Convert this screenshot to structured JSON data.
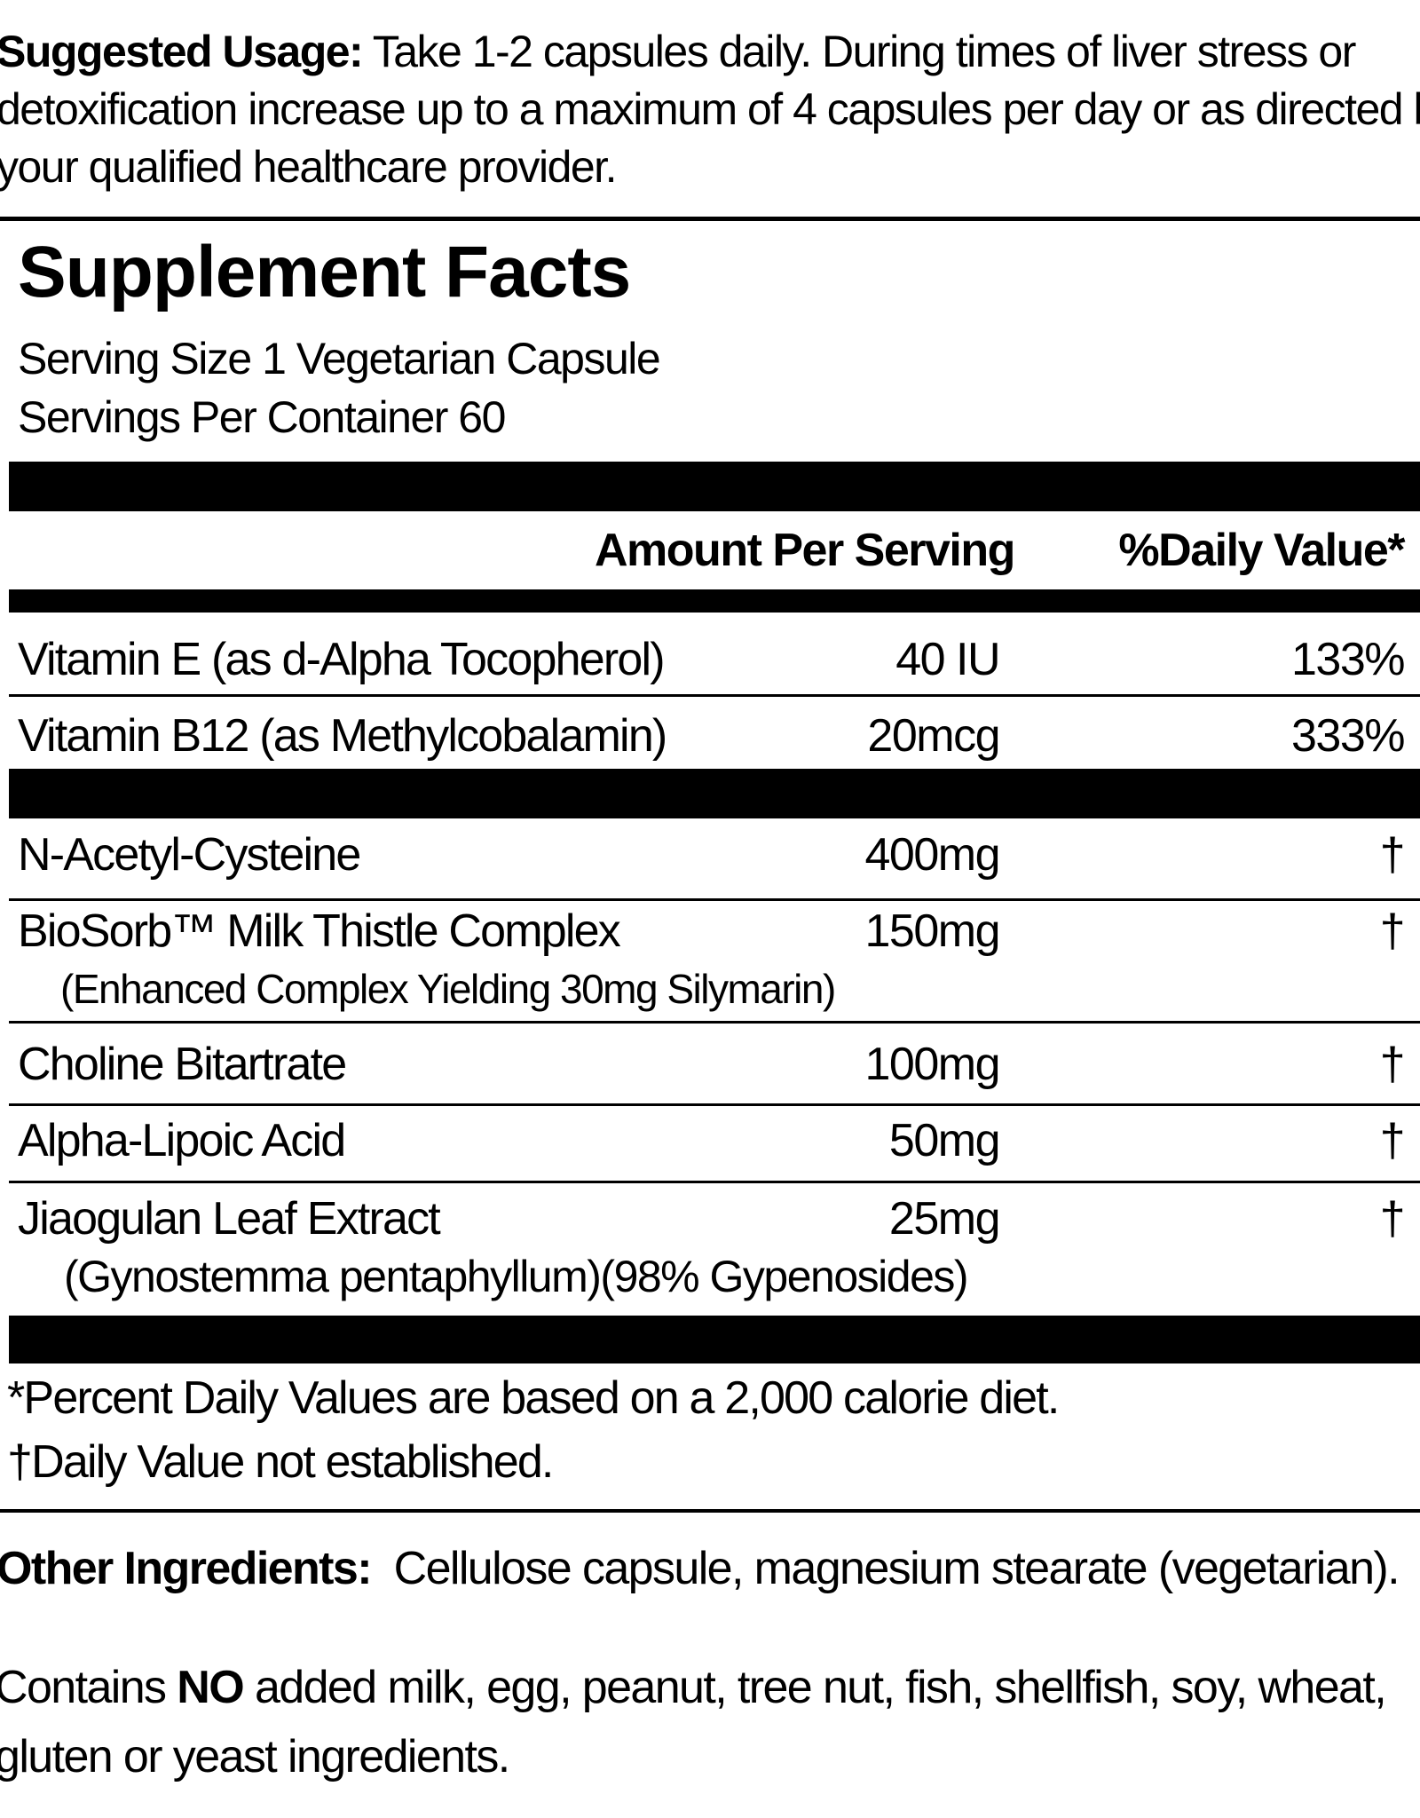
{
  "usage": {
    "label": "Suggested Usage:",
    "text": " Take 1-2 capsules daily. During times of liver stress or detoxification increase up to a maximum of 4 capsules per day or as directed by your qualified healthcare provider."
  },
  "facts": {
    "title": "Supplement Facts",
    "serving_size": "Serving Size 1 Vegetarian Capsule",
    "servings_per_container": "Servings Per Container 60",
    "header_amount": "Amount Per Serving",
    "header_dv": "%Daily Value*",
    "rows": [
      {
        "name": "Vitamin E (as d-Alpha Tocopherol)",
        "amount": "40 IU",
        "dv": "133%"
      },
      {
        "name": "Vitamin B12 (as Methylcobalamin)",
        "amount": "20mcg",
        "dv": "333%"
      },
      {
        "name": "N-Acetyl-Cysteine",
        "amount": "400mg",
        "dv": "†"
      },
      {
        "name": "BioSorb™ Milk Thistle Complex",
        "sub": "(Enhanced Complex Yielding 30mg Silymarin)",
        "amount": "150mg",
        "dv": "†"
      },
      {
        "name": "Choline Bitartrate",
        "amount": "100mg",
        "dv": "†"
      },
      {
        "name": "Alpha-Lipoic Acid",
        "amount": "50mg",
        "dv": "†"
      },
      {
        "name": "Jiaogulan Leaf Extract",
        "sub": "(Gynostemma pentaphyllum)(98% Gypenosides)",
        "amount": "25mg",
        "dv": "†"
      }
    ],
    "footnote_1": "*Percent Daily Values are based on a 2,000 calorie diet.",
    "footnote_2": "†Daily Value not established."
  },
  "other": {
    "label": "Other Ingredients:",
    "text": "  Cellulose capsule, magnesium stearate (vegetarian)."
  },
  "contains": {
    "pre": "Contains ",
    "bold": "NO",
    "post": " added milk, egg, peanut, tree nut, fish, shellfish, soy, wheat, gluten or yeast ingredients."
  }
}
